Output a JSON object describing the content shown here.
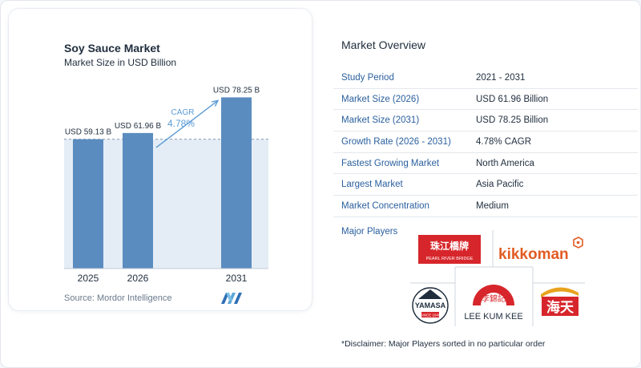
{
  "chart_data": {
    "type": "bar",
    "title": "Soy Sauce Market",
    "subtitle": "Market Size in USD Billion",
    "categories": [
      "2025",
      "2026",
      "2031"
    ],
    "values": [
      59.13,
      61.96,
      78.25
    ],
    "value_labels": [
      "USD 59.13 B",
      "USD 61.96 B",
      "USD 78.25 B"
    ],
    "cagr_label": "CAGR",
    "cagr_value": "4.78%",
    "ylim": [
      0,
      85
    ],
    "xlabel": "",
    "ylabel": "",
    "grid": false,
    "colors": {
      "bar": "#5b8cbf",
      "bar_top": "#6f9ccc",
      "band": "#e4edf6",
      "arrow": "#5b9bd5",
      "cagr_text": "#5b9bd5"
    }
  },
  "source": "Source: Mordor Intelligence",
  "overview": {
    "title": "Market Overview",
    "rows": [
      {
        "label": "Study Period",
        "value": "2021 - 2031"
      },
      {
        "label": "Market Size (2026)",
        "value": "USD 61.96 Billion"
      },
      {
        "label": "Market Size (2031)",
        "value": "USD 78.25 Billion"
      },
      {
        "label": "Growth Rate (2026 - 2031)",
        "value": "4.78% CAGR"
      },
      {
        "label": "Fastest Growing Market",
        "value": "North America"
      },
      {
        "label": "Largest Market",
        "value": "Asia Pacific"
      },
      {
        "label": "Market Concentration",
        "value": "Medium"
      }
    ],
    "players_label": "Major Players",
    "players": {
      "pearl_river": {
        "cn": "珠江橋牌",
        "en": "PEARL RIVER BRIDGE"
      },
      "kikkoman": "kikkoman",
      "yamasa": {
        "name": "YAMASA",
        "sub": "SINCE 1645"
      },
      "lee_kum_kee": {
        "cn": "李錦記",
        "en": "LEE KUM KEE"
      },
      "haitian": "海天"
    },
    "disclaimer": "*Disclaimer: Major Players sorted in no particular order"
  }
}
